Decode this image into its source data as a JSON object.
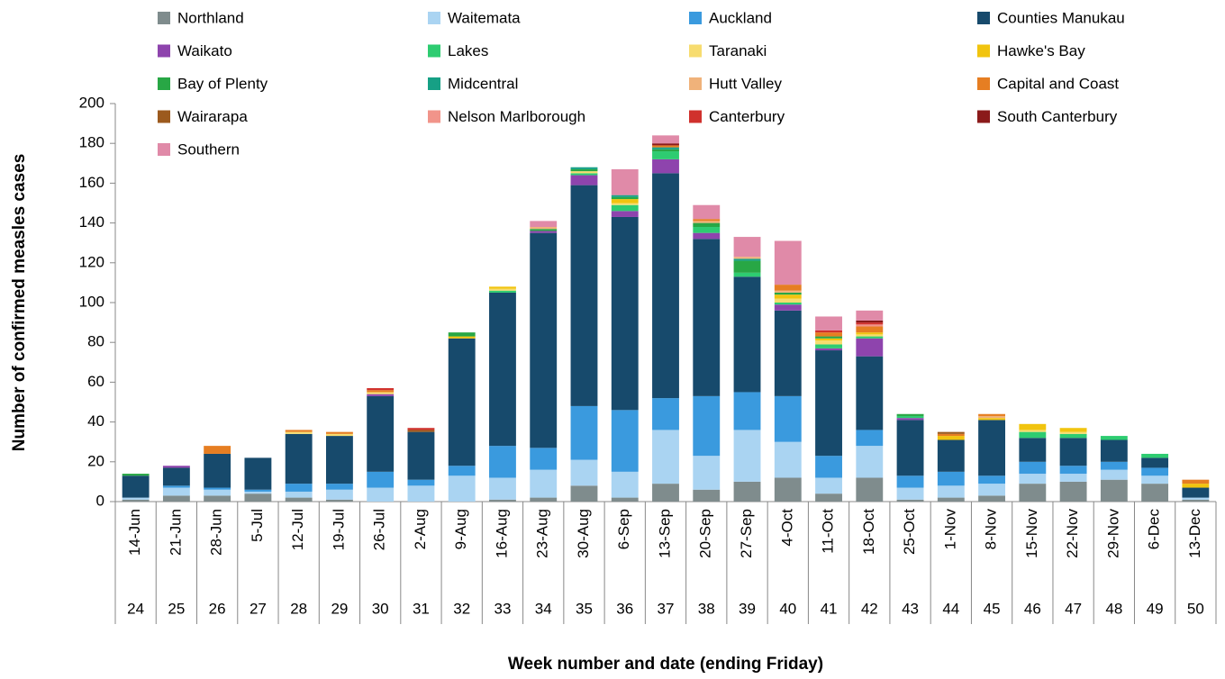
{
  "chart_data": {
    "type": "stacked_bar",
    "x_label": "Week number and date (ending Friday)",
    "y_label": "Number of confirmed measles cases",
    "categories": [
      "14-Jun",
      "21-Jun",
      "28-Jun",
      "5-Jul",
      "12-Jul",
      "19-Jul",
      "26-Jul",
      "2-Aug",
      "9-Aug",
      "16-Aug",
      "23-Aug",
      "30-Aug",
      "6-Sep",
      "13-Sep",
      "20-Sep",
      "27-Sep",
      "4-Oct",
      "11-Oct",
      "18-Oct",
      "25-Oct",
      "1-Nov",
      "8-Nov",
      "15-Nov",
      "22-Nov",
      "29-Nov",
      "6-Dec",
      "13-Dec"
    ],
    "week_numbers": [
      24,
      25,
      26,
      27,
      28,
      29,
      30,
      31,
      32,
      33,
      34,
      35,
      36,
      37,
      38,
      39,
      40,
      41,
      42,
      43,
      44,
      45,
      46,
      47,
      48,
      49,
      50
    ],
    "ylim": [
      0,
      200
    ],
    "yticks": [
      0,
      20,
      40,
      60,
      80,
      100,
      120,
      140,
      160,
      180,
      200
    ],
    "grid": false,
    "series": [
      {
        "name": "Northland",
        "color": "#7f8c8d",
        "values": [
          1,
          3,
          3,
          4,
          2,
          1,
          0,
          0,
          0,
          1,
          2,
          8,
          2,
          9,
          6,
          10,
          12,
          4,
          12,
          1,
          2,
          3,
          9,
          10,
          11,
          9,
          1
        ]
      },
      {
        "name": "Waitemata",
        "color": "#aad4f2",
        "values": [
          1,
          4,
          3,
          1,
          3,
          5,
          7,
          8,
          13,
          11,
          14,
          13,
          13,
          27,
          17,
          26,
          18,
          8,
          16,
          6,
          6,
          6,
          5,
          4,
          5,
          4,
          1
        ]
      },
      {
        "name": "Auckland",
        "color": "#3a9ade",
        "values": [
          0,
          1,
          1,
          1,
          4,
          3,
          8,
          3,
          5,
          16,
          11,
          27,
          31,
          16,
          30,
          19,
          23,
          11,
          8,
          6,
          7,
          4,
          6,
          4,
          4,
          4,
          0
        ]
      },
      {
        "name": "Counties Manukau",
        "color": "#174a6c",
        "values": [
          11,
          9,
          17,
          16,
          25,
          24,
          38,
          24,
          64,
          77,
          108,
          111,
          97,
          113,
          79,
          58,
          43,
          53,
          37,
          28,
          16,
          28,
          12,
          14,
          11,
          5,
          5
        ]
      },
      {
        "name": "Waikato",
        "color": "#8e44ad",
        "values": [
          0,
          1,
          0,
          0,
          0,
          0,
          1,
          0,
          0,
          0,
          1,
          5,
          3,
          7,
          3,
          0,
          3,
          1,
          9,
          1,
          0,
          0,
          0,
          0,
          0,
          0,
          0
        ]
      },
      {
        "name": "Lakes",
        "color": "#2ecc71",
        "values": [
          0,
          0,
          0,
          0,
          0,
          0,
          0,
          0,
          0,
          1,
          0,
          1,
          3,
          4,
          3,
          2,
          1,
          2,
          1,
          1,
          0,
          0,
          3,
          2,
          2,
          2,
          0
        ]
      },
      {
        "name": "Taranaki",
        "color": "#f7dc6f",
        "values": [
          0,
          0,
          0,
          0,
          1,
          1,
          1,
          0,
          0,
          1,
          0,
          1,
          1,
          0,
          0,
          0,
          2,
          2,
          1,
          0,
          0,
          0,
          1,
          1,
          0,
          0,
          0
        ]
      },
      {
        "name": "Hawke's Bay",
        "color": "#f1c40f",
        "values": [
          0,
          0,
          0,
          0,
          0,
          0,
          0,
          0,
          1,
          1,
          0,
          0,
          2,
          0,
          0,
          0,
          2,
          1,
          1,
          0,
          2,
          1,
          3,
          2,
          0,
          0,
          2
        ]
      },
      {
        "name": "Bay of Plenty",
        "color": "#28a745",
        "values": [
          1,
          0,
          0,
          0,
          0,
          0,
          0,
          0,
          2,
          0,
          1,
          1,
          1,
          1,
          2,
          6,
          1,
          1,
          0,
          1,
          0,
          0,
          0,
          0,
          0,
          0,
          0
        ]
      },
      {
        "name": "Midcentral",
        "color": "#16a085",
        "values": [
          0,
          0,
          0,
          0,
          0,
          0,
          0,
          0,
          0,
          0,
          0,
          1,
          1,
          1,
          0,
          1,
          0,
          0,
          0,
          0,
          0,
          0,
          0,
          0,
          0,
          0,
          0
        ]
      },
      {
        "name": "Hutt Valley",
        "color": "#f0b27a",
        "values": [
          0,
          0,
          0,
          0,
          0,
          0,
          0,
          0,
          0,
          0,
          1,
          0,
          0,
          0,
          1,
          1,
          1,
          0,
          0,
          0,
          0,
          1,
          0,
          0,
          0,
          0,
          0
        ]
      },
      {
        "name": "Capital and Coast",
        "color": "#e67e22",
        "values": [
          0,
          0,
          4,
          0,
          1,
          1,
          1,
          0,
          0,
          0,
          0,
          0,
          0,
          1,
          1,
          0,
          3,
          2,
          3,
          0,
          1,
          1,
          0,
          0,
          0,
          0,
          2
        ]
      },
      {
        "name": "Wairarapa",
        "color": "#9c5a1e",
        "values": [
          0,
          0,
          0,
          0,
          0,
          0,
          0,
          1,
          0,
          0,
          0,
          0,
          0,
          0,
          0,
          0,
          0,
          0,
          0,
          0,
          1,
          0,
          0,
          0,
          0,
          0,
          0
        ]
      },
      {
        "name": "Nelson Marlborough",
        "color": "#f1948a",
        "values": [
          0,
          0,
          0,
          0,
          0,
          0,
          0,
          0,
          0,
          0,
          0,
          0,
          0,
          0,
          0,
          0,
          0,
          0,
          1,
          0,
          0,
          0,
          0,
          0,
          0,
          0,
          0
        ]
      },
      {
        "name": "Canterbury",
        "color": "#d0312d",
        "values": [
          0,
          0,
          0,
          0,
          0,
          0,
          1,
          1,
          0,
          0,
          0,
          0,
          0,
          0,
          0,
          0,
          0,
          1,
          1,
          0,
          0,
          0,
          0,
          0,
          0,
          0,
          0
        ]
      },
      {
        "name": "South Canterbury",
        "color": "#8b1a1a",
        "values": [
          0,
          0,
          0,
          0,
          0,
          0,
          0,
          0,
          0,
          0,
          0,
          0,
          0,
          1,
          0,
          0,
          0,
          0,
          1,
          0,
          0,
          0,
          0,
          0,
          0,
          0,
          0
        ]
      },
      {
        "name": "Southern",
        "color": "#e08aa8",
        "values": [
          0,
          0,
          0,
          0,
          0,
          0,
          0,
          0,
          0,
          0,
          3,
          0,
          13,
          4,
          7,
          10,
          22,
          7,
          5,
          0,
          0,
          0,
          0,
          0,
          0,
          0,
          0
        ]
      }
    ]
  }
}
